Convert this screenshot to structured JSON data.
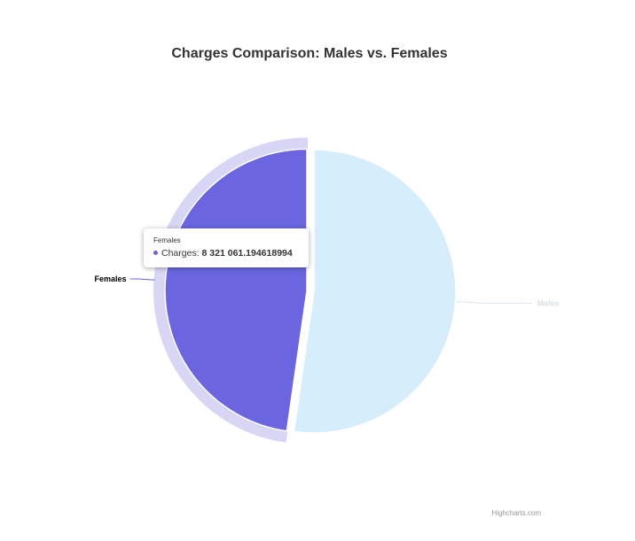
{
  "chart_data": {
    "type": "pie",
    "title": "Charges Comparison: Males vs. Females",
    "series": [
      {
        "name": "Charges",
        "data": [
          {
            "name": "Males",
            "value": 9108000,
            "color": "#d6eefc",
            "label_color": "#d9e0e6"
          },
          {
            "name": "Females",
            "value": 8321061.194618994,
            "color": "#6b66e0",
            "label_color": "#000000",
            "hovered": true
          }
        ]
      }
    ],
    "hover_halo_color": "#d8d6f4"
  },
  "tooltip": {
    "header": "Females",
    "series_label": "Charges:",
    "value": "8 321 061.194618994",
    "dot_color": "#6b66e0"
  },
  "credits": "Highcharts.com"
}
